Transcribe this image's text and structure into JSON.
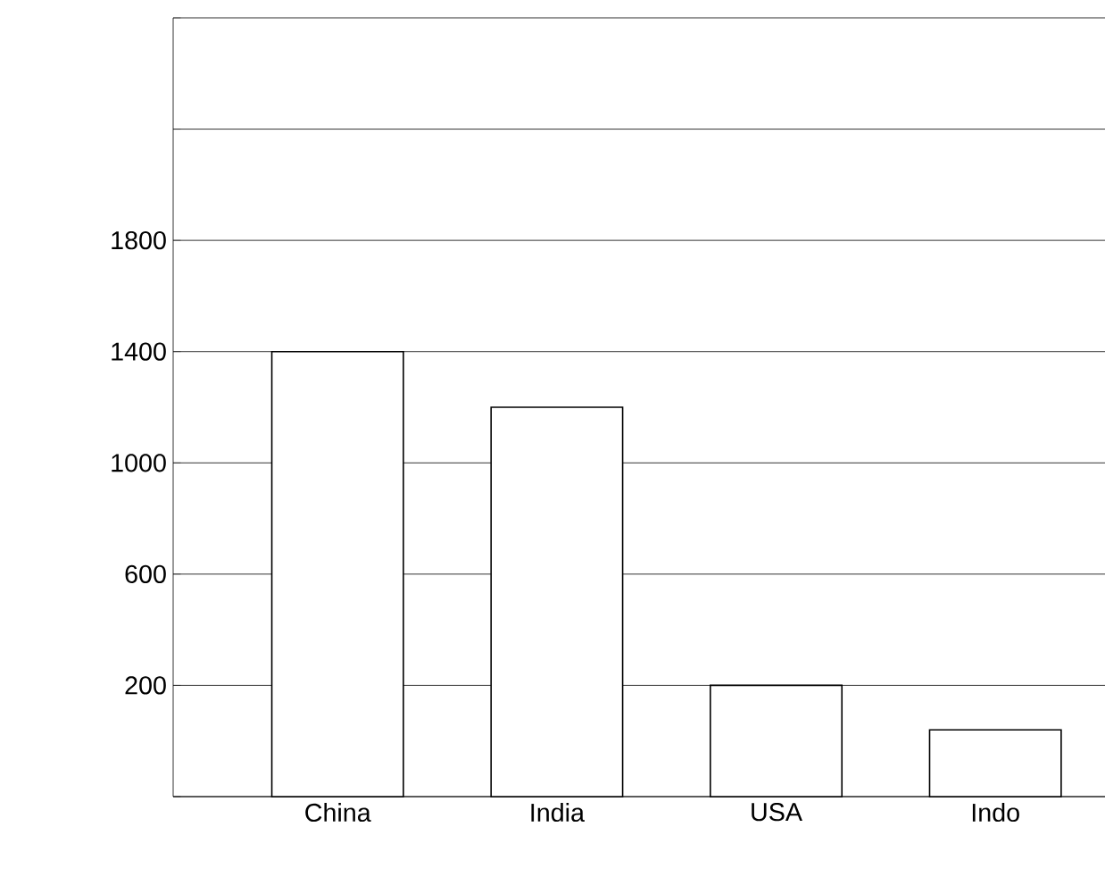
{
  "chart_data": {
    "type": "bar",
    "categories": [
      "China",
      "India",
      "USA",
      "Indo"
    ],
    "values": [
      1600,
      1400,
      400,
      240
    ],
    "base": [
      -200,
      -200,
      -200,
      -200
    ],
    "color": "#000000",
    "ylim": [
      -200,
      2600
    ],
    "yticks": [
      {
        "value": -200,
        "label": null
      },
      200,
      600,
      1000,
      1400,
      1800,
      {
        "value": 2200,
        "label": null
      },
      {
        "value": 2600,
        "label": null
      }
    ],
    "grid": "y"
  }
}
